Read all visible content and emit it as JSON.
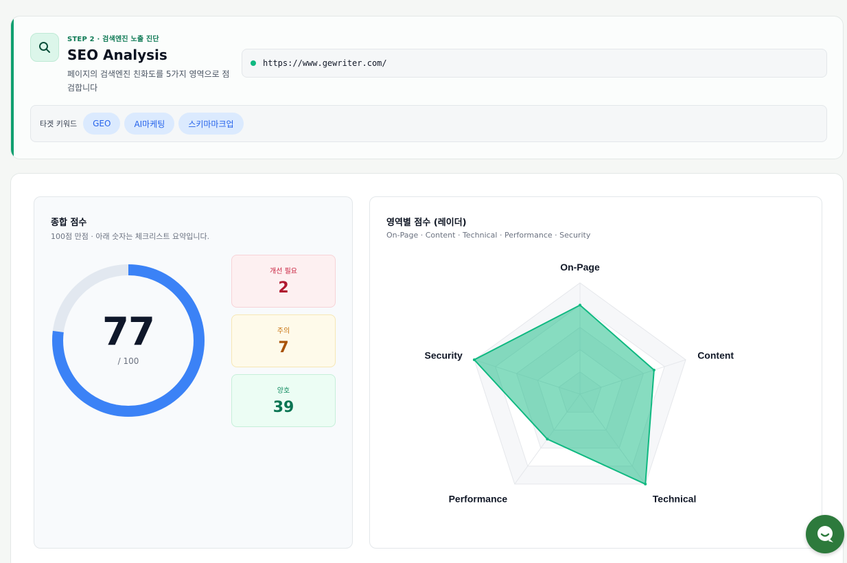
{
  "header": {
    "step": "STEP 2 · 검색엔진 노출 진단",
    "title": "SEO Analysis",
    "description": "페이지의 검색엔진 친화도를 5가지 영역으로 점검합니다",
    "url": "https://www.gewriter.com/",
    "keywords_label": "타겟 키워드",
    "keywords": [
      "GEO",
      "AI마케팅",
      "스키마마크업"
    ]
  },
  "overall": {
    "title": "종합 점수",
    "subtitle": "100점 만점 · 아래 숫자는 체크리스트 요약입니다.",
    "score": "77",
    "score_max": "/ 100",
    "score_fraction": 0.77,
    "stats": [
      {
        "label": "개선 필요",
        "value": "2"
      },
      {
        "label": "주의",
        "value": "7"
      },
      {
        "label": "양호",
        "value": "39"
      }
    ]
  },
  "radar": {
    "title": "영역별 점수 (레이더)",
    "subtitle": "On-Page · Content · Technical · Performance · Security"
  },
  "chart_data": {
    "type": "radar",
    "title": "영역별 점수 (레이더)",
    "categories": [
      "On-Page",
      "Content",
      "Technical",
      "Performance",
      "Security"
    ],
    "values": [
      80,
      70,
      100,
      50,
      100
    ],
    "range": [
      0,
      100
    ],
    "grid_levels": 5,
    "color": "#10b981"
  },
  "colors": {
    "accent": "#10a070",
    "gauge": "#3b82f6",
    "gauge_track": "#e2e8f0"
  },
  "icons": {
    "search": "search-icon",
    "chat": "chat-icon"
  }
}
